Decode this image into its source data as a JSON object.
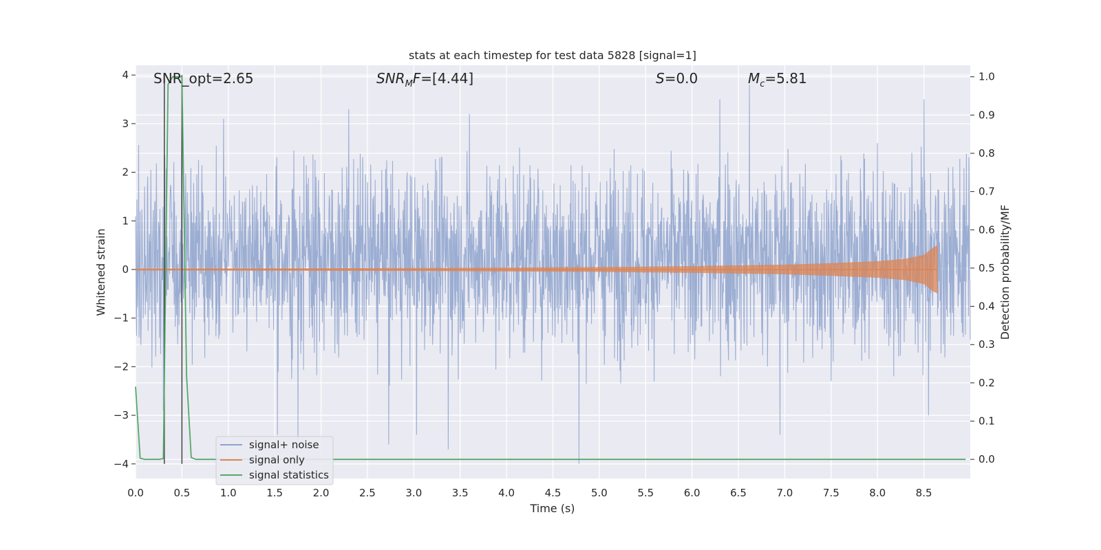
{
  "chart_data": {
    "type": "line",
    "title": "stats at each timestep for test data 5828 [signal=1]",
    "xlabel": "Time (s)",
    "ylabel": "Whitened strain",
    "y2label": "Detection probability/MF",
    "xlim": [
      0,
      9.0
    ],
    "ylim": [
      -4.3,
      4.2
    ],
    "y2lim": [
      -0.05,
      1.03
    ],
    "x_ticks": [
      0.0,
      0.5,
      1.0,
      1.5,
      2.0,
      2.5,
      3.0,
      3.5,
      4.0,
      4.5,
      5.0,
      5.5,
      6.0,
      6.5,
      7.0,
      7.5,
      8.0,
      8.5
    ],
    "x_tick_labels": [
      "0.0",
      "0.5",
      "1.0",
      "1.5",
      "2.0",
      "2.5",
      "3.0",
      "3.5",
      "4.0",
      "4.5",
      "5.0",
      "5.5",
      "6.0",
      "6.5",
      "7.0",
      "7.5",
      "8.0",
      "8.5"
    ],
    "y_ticks": [
      -4,
      -3,
      -2,
      -1,
      0,
      1,
      2,
      3,
      4
    ],
    "y_tick_labels": [
      "−4",
      "−3",
      "−2",
      "−1",
      "0",
      "1",
      "2",
      "3",
      "4"
    ],
    "y2_ticks": [
      0.0,
      0.1,
      0.2,
      0.3,
      0.4,
      0.5,
      0.6,
      0.7,
      0.8,
      0.9,
      1.0
    ],
    "y2_tick_labels": [
      "0.0",
      "0.1",
      "0.2",
      "0.3",
      "0.4",
      "0.5",
      "0.6",
      "0.7",
      "0.8",
      "0.9",
      "1.0"
    ],
    "grid": true,
    "legend_position": "bottom-left",
    "series": [
      {
        "name": "signal+ noise",
        "color": "#8da2cc",
        "kind": "noisy strain",
        "x_range": [
          0.0,
          9.0
        ],
        "typical_envelope": [
          -1.5,
          2.0
        ],
        "peaks": [
          {
            "x": 0.3,
            "y": -2.9
          },
          {
            "x": 0.5,
            "y": 2.9
          },
          {
            "x": 0.95,
            "y": 3.1
          },
          {
            "x": 1.53,
            "y": -3.4
          },
          {
            "x": 1.75,
            "y": -3.5
          },
          {
            "x": 2.3,
            "y": 3.3
          },
          {
            "x": 2.73,
            "y": -3.6
          },
          {
            "x": 3.03,
            "y": -3.4
          },
          {
            "x": 3.37,
            "y": -3.7
          },
          {
            "x": 3.6,
            "y": 3.2
          },
          {
            "x": 4.78,
            "y": -4.0
          },
          {
            "x": 6.3,
            "y": 3.5
          },
          {
            "x": 6.62,
            "y": 3.8
          },
          {
            "x": 6.95,
            "y": -3.4
          },
          {
            "x": 8.5,
            "y": 3.5
          },
          {
            "x": 8.55,
            "y": -3.0
          }
        ]
      },
      {
        "name": "signal only",
        "color": "#dd8452",
        "kind": "chirp",
        "x": [
          0.0,
          3.0,
          5.0,
          6.0,
          7.0,
          7.5,
          8.0,
          8.3,
          8.5,
          8.6,
          8.65
        ],
        "amplitude": [
          0.02,
          0.03,
          0.05,
          0.07,
          0.1,
          0.13,
          0.17,
          0.22,
          0.3,
          0.45,
          0.5
        ]
      },
      {
        "name": "signal statistics",
        "color": "#55a868",
        "axis": "right",
        "x": [
          0.0,
          0.05,
          0.1,
          0.15,
          0.2,
          0.25,
          0.3,
          0.35,
          0.4,
          0.45,
          0.5,
          0.55,
          0.6,
          0.65,
          0.7,
          0.75,
          8.95
        ],
        "values": [
          0.19,
          0.003,
          0.0,
          0.0,
          0.0,
          0.0,
          0.002,
          0.98,
          1.0,
          1.0,
          1.0,
          0.22,
          0.005,
          0.0,
          0.0,
          0.0,
          0.0
        ]
      }
    ],
    "vertical_lines": [
      {
        "x": 0.31,
        "ymin": -4.0,
        "ymax": 4.0,
        "color": "#444444"
      },
      {
        "x": 0.5,
        "ymin": -4.0,
        "ymax": 4.0,
        "color": "#444444"
      }
    ],
    "annotations": [
      {
        "text": "SNR_opt=2.65",
        "x": 0.2,
        "y": 3.8
      },
      {
        "text": "SNR_M F=[4.44]",
        "x": 2.6,
        "y": 3.8
      },
      {
        "text": "S=0.0",
        "x": 5.6,
        "y": 3.8
      },
      {
        "text": "M_c=5.81",
        "x": 6.6,
        "y": 3.8
      }
    ]
  }
}
